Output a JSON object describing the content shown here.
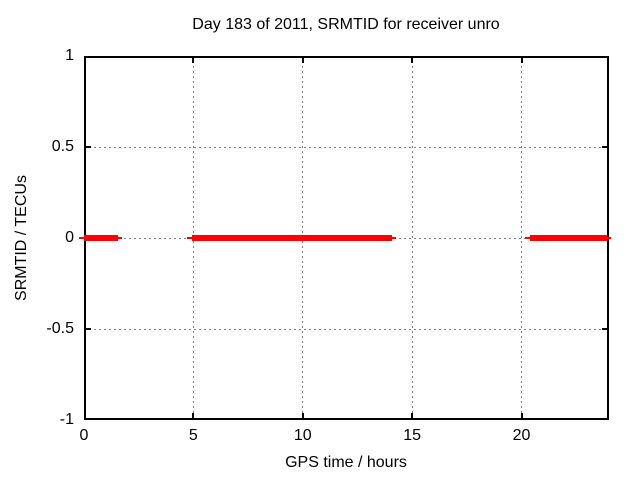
{
  "chart_data": {
    "type": "line",
    "title": "Day 183 of 2011, SRMTID for receiver unro",
    "xlabel": "GPS time / hours",
    "ylabel": "SRMTID / TECUs",
    "xlim": [
      0,
      24
    ],
    "ylim": [
      -1,
      1
    ],
    "x_ticks": [
      0,
      5,
      10,
      15,
      20
    ],
    "x_tick_labels": [
      "0",
      "5",
      "10",
      "15",
      "20"
    ],
    "y_ticks": [
      1,
      0.5,
      0,
      -0.5,
      -1
    ],
    "y_tick_labels": [
      "1",
      "0.5",
      "0",
      "-0.5",
      "-1"
    ],
    "grid": true,
    "grid_style": "dotted",
    "legend": "none",
    "series": [
      {
        "name": "SRMTID",
        "color": "#ff0000",
        "style": "thick horizontal segments at constant y",
        "y_value": 0,
        "segments_x_hours": [
          [
            0.0,
            1.56
          ],
          [
            4.95,
            14.08
          ],
          [
            20.37,
            23.9
          ]
        ]
      }
    ],
    "colors": {
      "background": "#ffffff",
      "grid": "#808080",
      "axis": "#000000",
      "text": "#000000",
      "series": "#ff0000"
    }
  }
}
